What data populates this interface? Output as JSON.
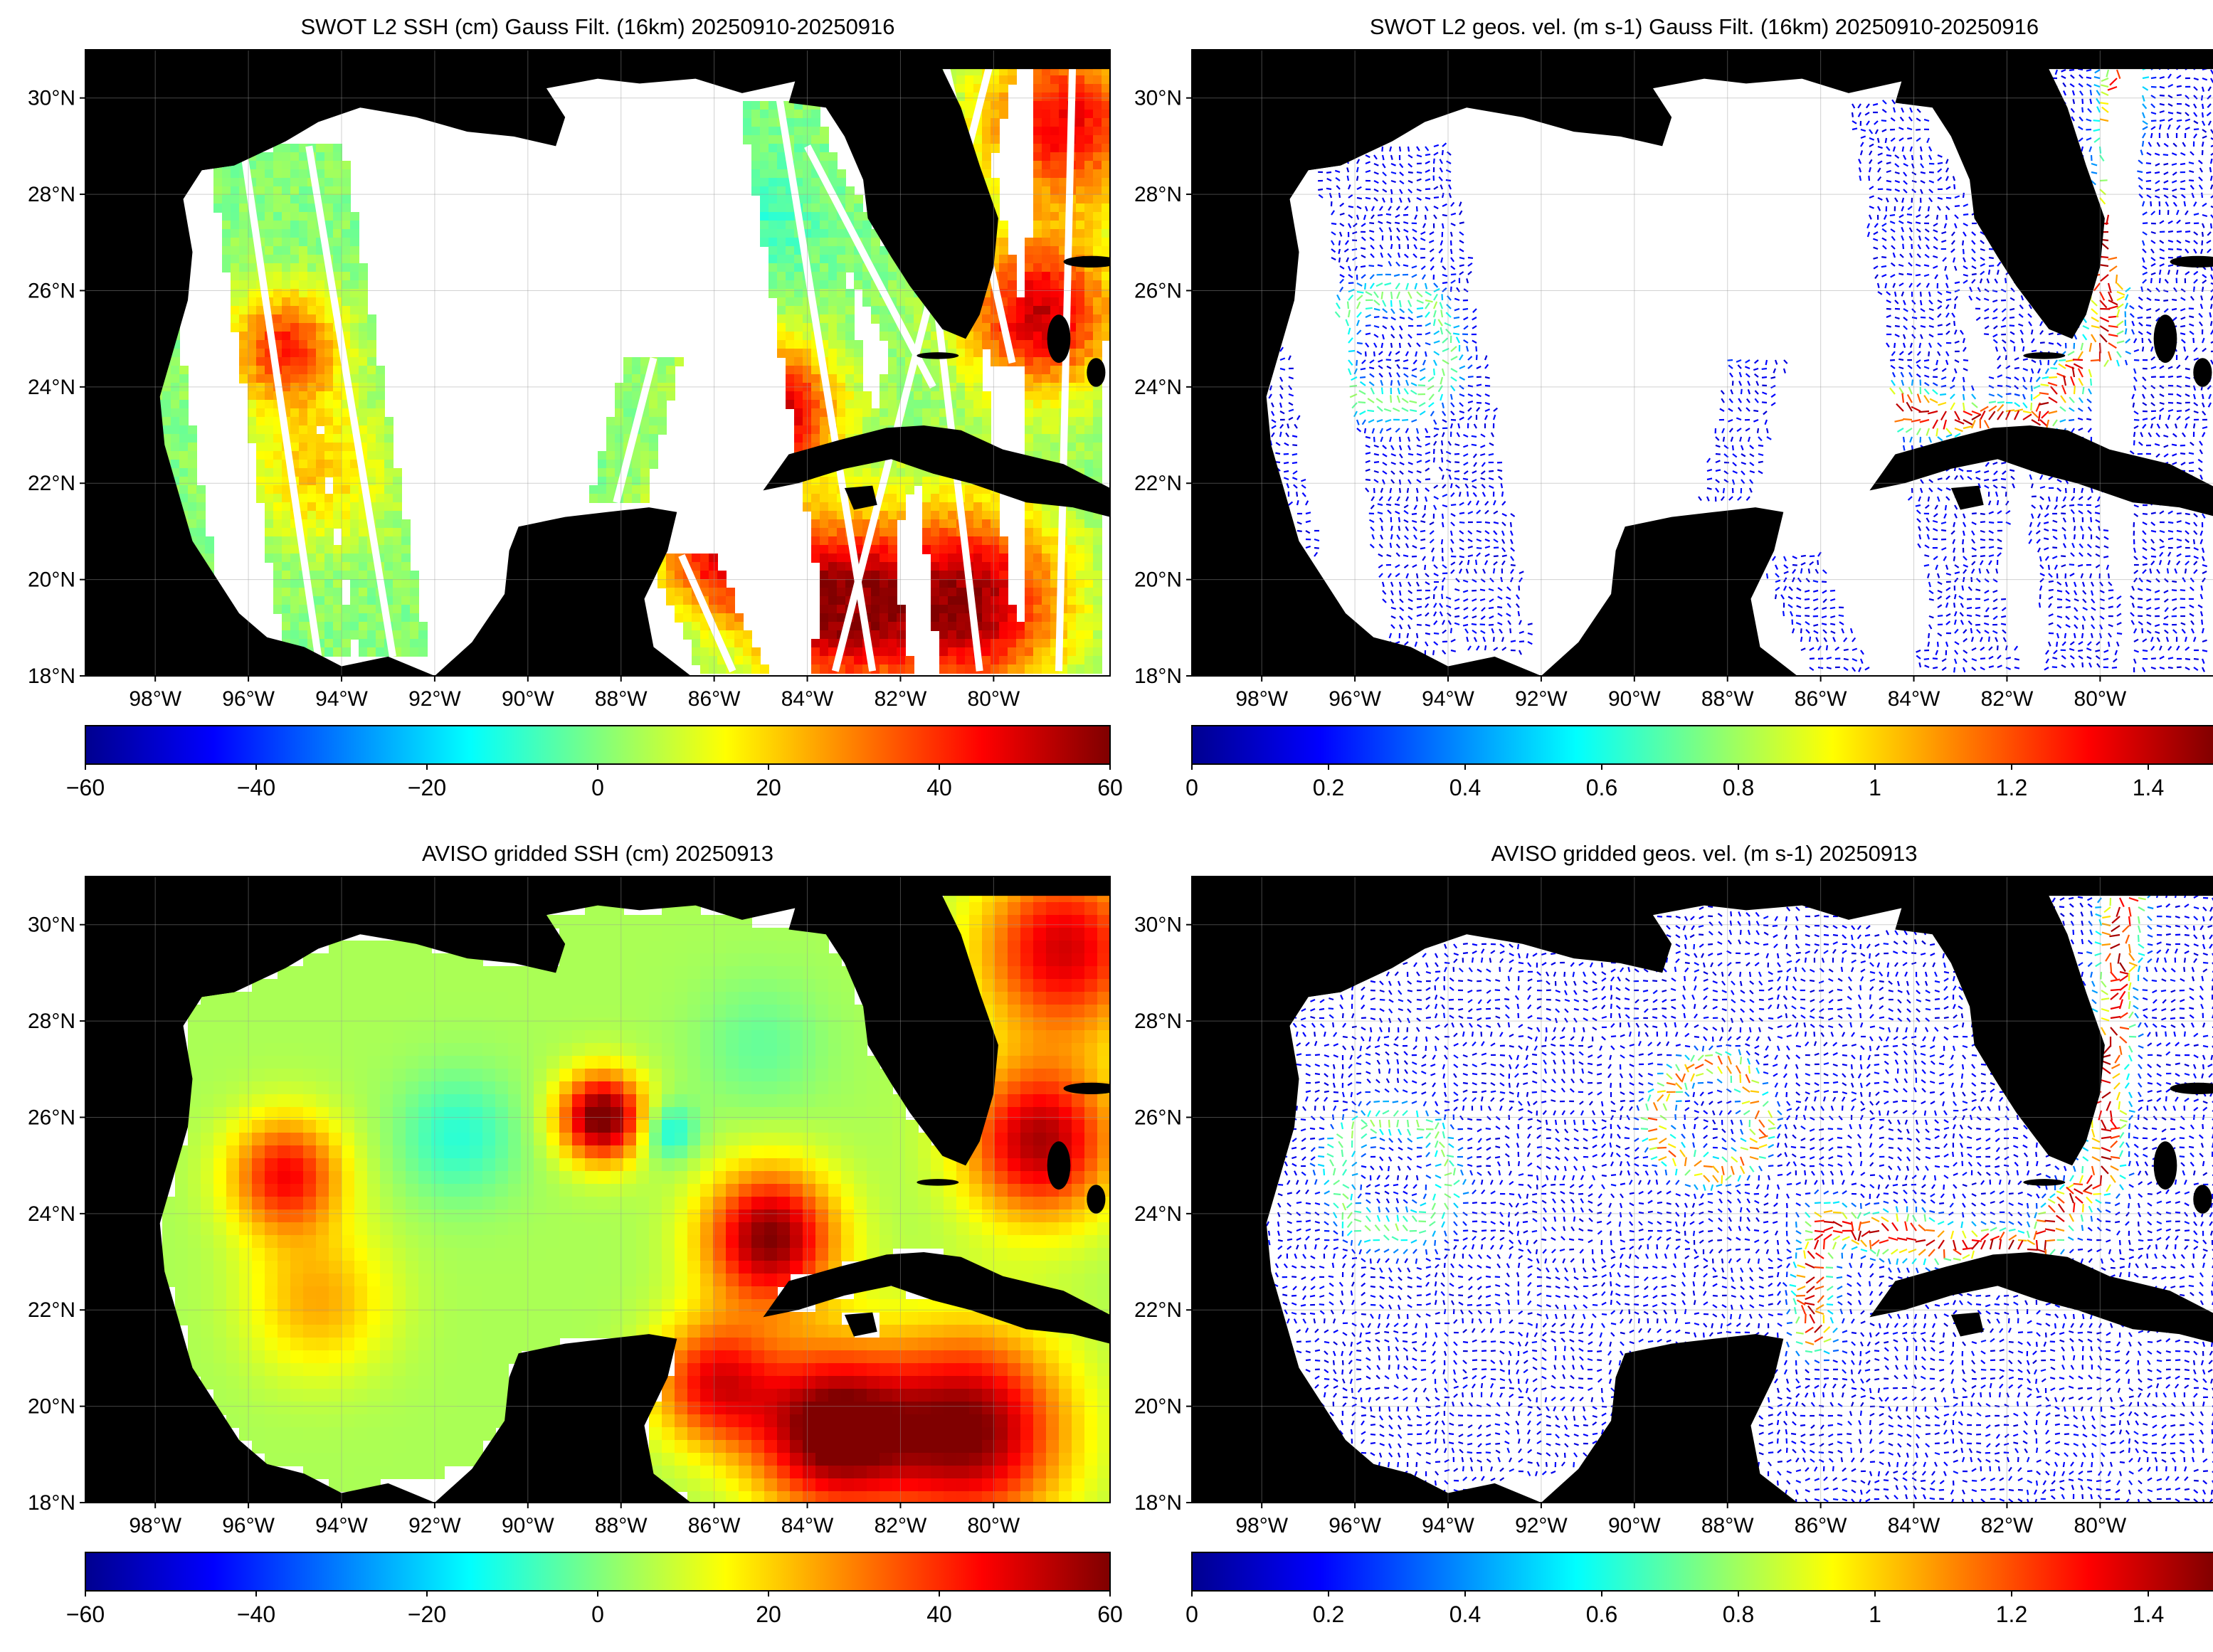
{
  "panels": [
    {
      "title": "SWOT L2 SSH (cm) Gauss Filt. (16km) 20250910-20250916",
      "kind": "ssh_swaths",
      "colorbar_ticks": [
        "−60",
        "−40",
        "−20",
        "0",
        "20",
        "40",
        "60"
      ]
    },
    {
      "title": "SWOT L2 geos. vel. (m s-1) Gauss Filt. (16km) 20250910-20250916",
      "kind": "vel_swaths",
      "colorbar_ticks": [
        "0",
        "0.2",
        "0.4",
        "0.6",
        "0.8",
        "1",
        "1.2",
        "1.4"
      ]
    },
    {
      "title": "AVISO gridded SSH (cm) 20250913",
      "kind": "ssh_grid",
      "colorbar_ticks": [
        "−60",
        "−40",
        "−20",
        "0",
        "20",
        "40",
        "60"
      ]
    },
    {
      "title": "AVISO gridded geos. vel. (m s-1)  20250913",
      "kind": "vel_grid",
      "colorbar_ticks": [
        "0",
        "0.2",
        "0.4",
        "0.6",
        "0.8",
        "1",
        "1.2",
        "1.4"
      ]
    }
  ],
  "lon_ticks": [
    "98°W",
    "96°W",
    "94°W",
    "92°W",
    "90°W",
    "88°W",
    "86°W",
    "84°W",
    "82°W",
    "80°W"
  ],
  "lat_ticks": [
    "30°N",
    "28°N",
    "26°N",
    "24°N",
    "22°N",
    "20°N",
    "18°N"
  ],
  "colors": {
    "land": "#000000",
    "ocean_nodata": "#ffffff",
    "grid": "#999999",
    "colormap": "jet"
  },
  "chart_data": [
    {
      "type": "heatmap",
      "title": "SWOT L2 SSH (cm) Gauss Filt. (16km) 20250910-20250916",
      "variable": "SSH (cm)",
      "xlim": [
        -99.5,
        -77.5
      ],
      "ylim": [
        18,
        31
      ],
      "clim": [
        -60,
        60
      ],
      "colorbar_ticks": [
        -60,
        -40,
        -20,
        0,
        20,
        40,
        60
      ],
      "colormap": "jet",
      "grid": true,
      "coverage": "swaths"
    },
    {
      "type": "scatter",
      "title": "SWOT L2 geos. vel. (m s-1) Gauss Filt. (16km) 20250910-20250916",
      "variable": "geostrophic velocity (m s-1)",
      "xlim": [
        -99.5,
        -77.5
      ],
      "ylim": [
        18,
        31
      ],
      "clim": [
        0,
        1.5
      ],
      "colorbar_ticks": [
        0,
        0.2,
        0.4,
        0.6,
        0.8,
        1,
        1.2,
        1.4
      ],
      "colormap": "jet",
      "grid": true,
      "coverage": "swaths"
    },
    {
      "type": "heatmap",
      "title": "AVISO gridded SSH (cm) 20250913",
      "variable": "SSH (cm)",
      "xlim": [
        -99.5,
        -77.5
      ],
      "ylim": [
        18,
        31
      ],
      "clim": [
        -60,
        60
      ],
      "colorbar_ticks": [
        -60,
        -40,
        -20,
        0,
        20,
        40,
        60
      ],
      "colormap": "jet",
      "grid": true,
      "features": [
        {
          "name": "Loop Current core",
          "lon": -84.8,
          "lat": 23.5,
          "value": 55
        },
        {
          "name": "detached eddy",
          "lon": -88.4,
          "lat": 26.0,
          "value": 58
        },
        {
          "name": "western eddy",
          "lon": -95.2,
          "lat": 24.8,
          "value": 40
        },
        {
          "name": "Caribbean",
          "lon": -83.5,
          "lat": 19.5,
          "value": 58
        },
        {
          "name": "Florida Straits",
          "lon": -79.0,
          "lat": 25.5,
          "value": 50
        }
      ]
    },
    {
      "type": "scatter",
      "title": "AVISO gridded geos. vel. (m s-1)  20250913",
      "variable": "geostrophic velocity (m s-1)",
      "xlim": [
        -99.5,
        -77.5
      ],
      "ylim": [
        18,
        31
      ],
      "clim": [
        0,
        1.5
      ],
      "colorbar_ticks": [
        0,
        0.2,
        0.4,
        0.6,
        0.8,
        1,
        1.2,
        1.4
      ],
      "colormap": "jet",
      "grid": true,
      "features": [
        {
          "name": "Loop Current",
          "path": [
            [
              -86.2,
              21.5
            ],
            [
              -86.0,
              23.8
            ],
            [
              -84.0,
              23.5
            ],
            [
              -81.5,
              23.2
            ],
            [
              -80.0,
              24.8
            ],
            [
              -79.8,
              27.0
            ],
            [
              -79.5,
              30.5
            ]
          ],
          "speed": 1.2
        },
        {
          "name": "eddy ring",
          "lon": -88.4,
          "lat": 26.0,
          "speed": 1.0
        }
      ]
    }
  ]
}
